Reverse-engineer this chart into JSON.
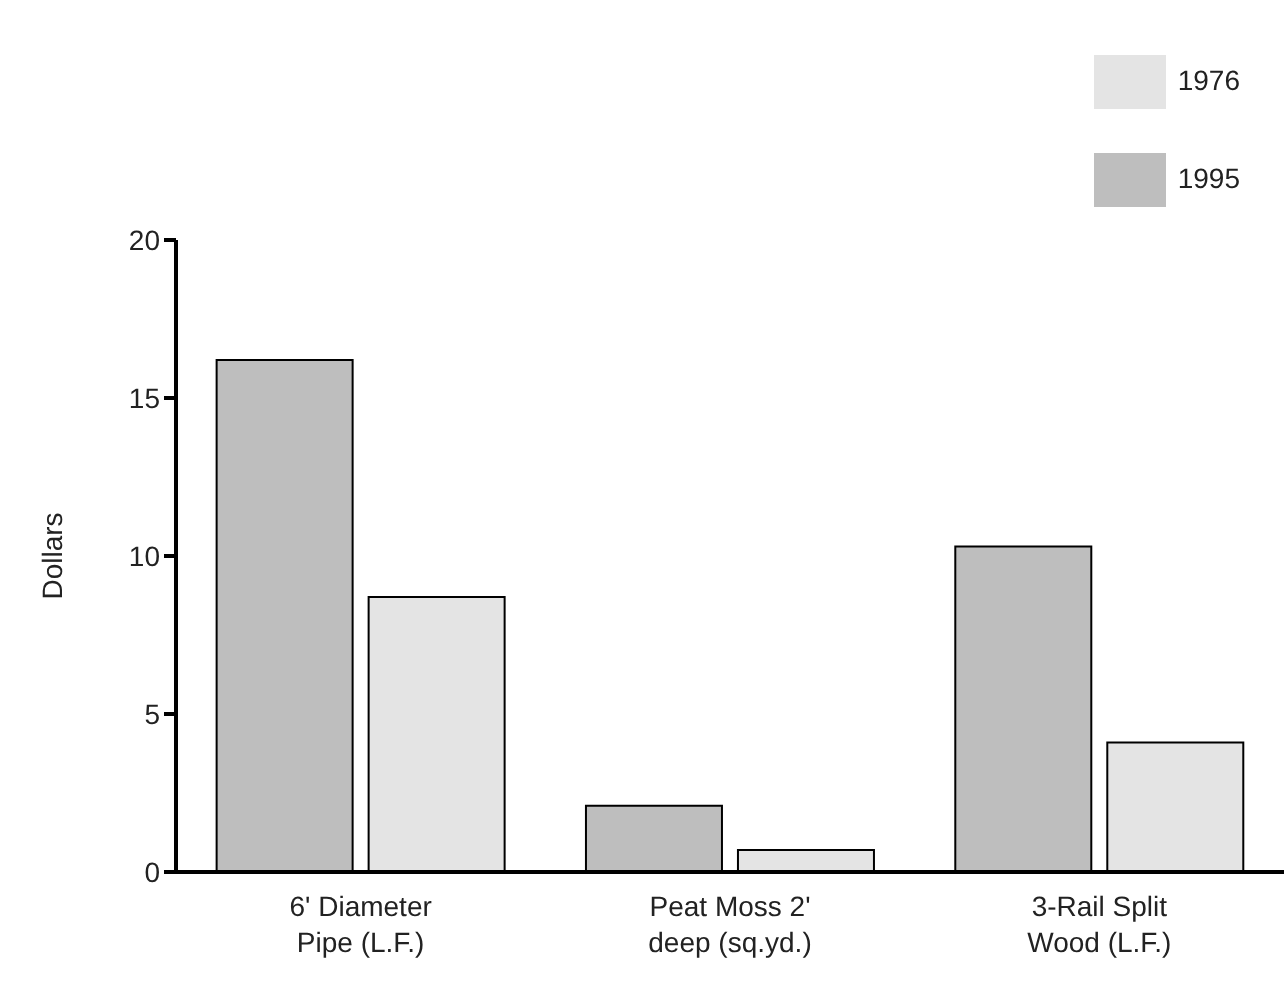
{
  "chart_data": {
    "type": "bar",
    "ylabel": "Dollars",
    "categories": [
      "6' Diameter\nPipe (L.F.)",
      "Peat Moss 2'\ndeep (sq.yd.)",
      "3-Rail Split\nWood (L.F.)"
    ],
    "series": [
      {
        "name": "1995",
        "color": "#bebebe",
        "values": [
          16.2,
          2.1,
          10.3
        ]
      },
      {
        "name": "1976",
        "color": "#e4e4e4",
        "values": [
          8.7,
          0.7,
          4.1
        ]
      }
    ],
    "ylim": [
      0,
      20
    ],
    "yticks": [
      0,
      5,
      10,
      15,
      20
    ],
    "grid": false,
    "legend": "top right"
  }
}
